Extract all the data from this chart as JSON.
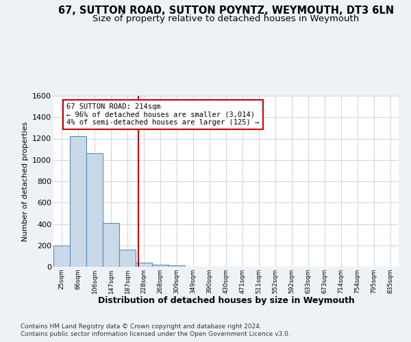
{
  "title1": "67, SUTTON ROAD, SUTTON POYNTZ, WEYMOUTH, DT3 6LN",
  "title2": "Size of property relative to detached houses in Weymouth",
  "xlabel": "Distribution of detached houses by size in Weymouth",
  "ylabel": "Number of detached properties",
  "categories": [
    "25sqm",
    "66sqm",
    "106sqm",
    "147sqm",
    "187sqm",
    "228sqm",
    "268sqm",
    "309sqm",
    "349sqm",
    "390sqm",
    "430sqm",
    "471sqm",
    "511sqm",
    "552sqm",
    "592sqm",
    "633sqm",
    "673sqm",
    "714sqm",
    "754sqm",
    "795sqm",
    "835sqm"
  ],
  "values": [
    200,
    1220,
    1060,
    410,
    160,
    40,
    20,
    10,
    0,
    0,
    0,
    0,
    0,
    0,
    0,
    0,
    0,
    0,
    0,
    0,
    0
  ],
  "bar_color": "#c9d9e8",
  "bar_edge_color": "#5b8db8",
  "annotation_line1": "67 SUTTON ROAD: 214sqm",
  "annotation_line2": "← 96% of detached houses are smaller (3,014)",
  "annotation_line3": "4% of semi-detached houses are larger (125) →",
  "marker_color": "#cc0000",
  "ylim": [
    0,
    1600
  ],
  "yticks": [
    0,
    200,
    400,
    600,
    800,
    1000,
    1200,
    1400,
    1600
  ],
  "footer1": "Contains HM Land Registry data © Crown copyright and database right 2024.",
  "footer2": "Contains public sector information licensed under the Open Government Licence v3.0.",
  "bg_color": "#eef2f7",
  "plot_bg_color": "#ffffff",
  "grid_color": "#c8d4e0",
  "title1_fontsize": 10.5,
  "title2_fontsize": 9.5
}
